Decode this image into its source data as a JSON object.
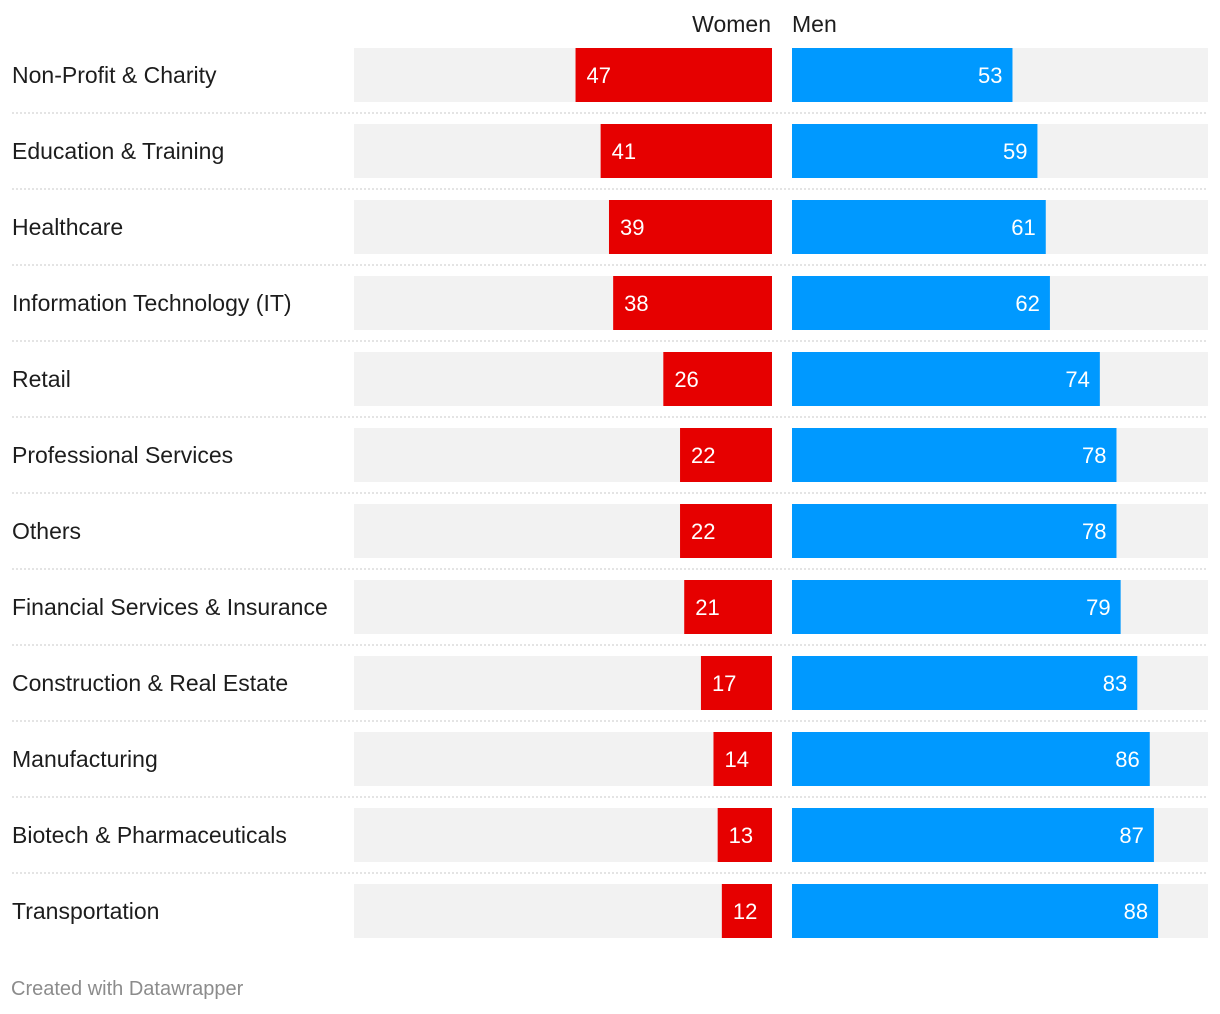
{
  "chart_data": {
    "type": "bar",
    "subtype": "split-bar",
    "series": [
      {
        "name": "Women",
        "color": "#e60000",
        "values": [
          47,
          41,
          39,
          38,
          26,
          22,
          22,
          21,
          17,
          14,
          13,
          12
        ]
      },
      {
        "name": "Men",
        "color": "#0099ff",
        "values": [
          53,
          59,
          61,
          62,
          74,
          78,
          78,
          79,
          83,
          86,
          87,
          88
        ]
      }
    ],
    "categories": [
      "Non-Profit & Charity",
      "Education & Training",
      "Healthcare",
      "Information Technology (IT)",
      "Retail",
      "Professional Services",
      "Others",
      "Financial Services & Insurance",
      "Construction & Real Estate",
      "Manufacturing",
      "Biotech & Pharmaceuticals",
      "Transportation"
    ],
    "background_color": "#f2f2f2",
    "max": 100
  },
  "footer": {
    "credit": "Created with Datawrapper"
  }
}
